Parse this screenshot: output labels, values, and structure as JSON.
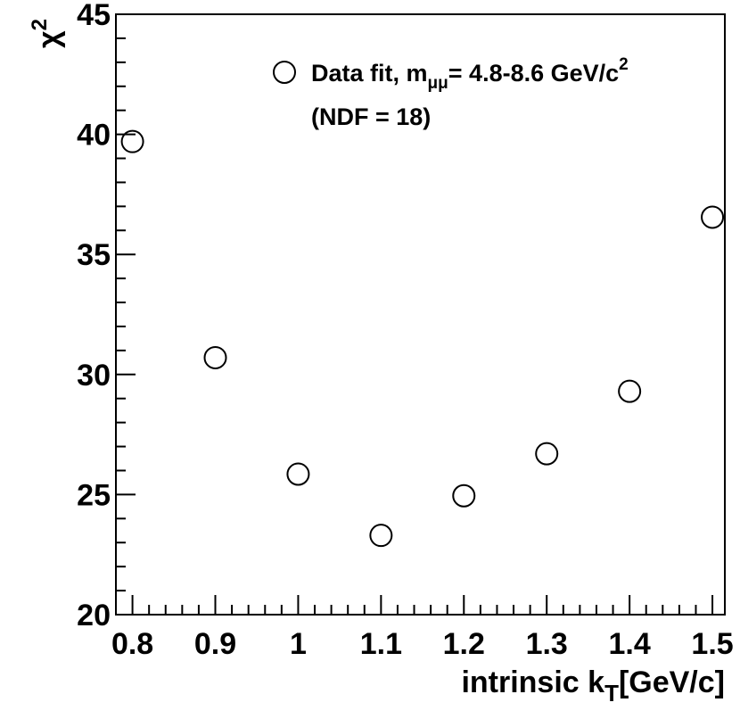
{
  "chart_data": {
    "type": "scatter",
    "x": [
      0.8,
      0.9,
      1.0,
      1.1,
      1.2,
      1.3,
      1.4,
      1.5
    ],
    "y": [
      39.7,
      30.7,
      25.85,
      23.3,
      24.95,
      26.7,
      29.3,
      36.55
    ],
    "xlim": [
      0.78,
      1.515
    ],
    "ylim": [
      20,
      45
    ],
    "x_ticks": [
      0.8,
      0.9,
      1.0,
      1.1,
      1.2,
      1.3,
      1.4,
      1.5
    ],
    "x_tick_labels": [
      "0.8",
      "0.9",
      "1",
      "1.1",
      "1.2",
      "1.3",
      "1.4",
      "1.5"
    ],
    "y_ticks": [
      20,
      25,
      30,
      35,
      40,
      45
    ],
    "y_tick_labels": [
      "20",
      "25",
      "30",
      "35",
      "40",
      "45"
    ],
    "xlabel": {
      "text": "intrinsic k",
      "sub": "T",
      "suffix": "[GeV/c]"
    },
    "ylabel": {
      "base": "χ",
      "sup": "2"
    },
    "legend": {
      "position": "top-right",
      "marker": "open-circle",
      "line1_prefix": "Data fit, m",
      "line1_sub": "μμ",
      "line1_main": "= 4.8-8.6 GeV/c",
      "line1_sup": "2",
      "line2": "(NDF = 18)"
    },
    "grid": false
  }
}
